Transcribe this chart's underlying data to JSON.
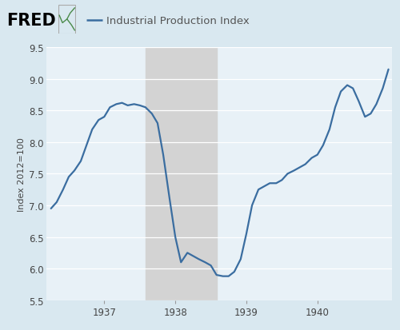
{
  "title": "Industrial Production Index",
  "ylabel": "Index 2012=100",
  "line_color": "#3a6da0",
  "background_color": "#d9e8f0",
  "plot_bg_color": "#e8f1f7",
  "recession_color": "#d3d3d3",
  "recession_start": 1937.583,
  "recession_end": 1938.583,
  "ylim": [
    5.5,
    9.5
  ],
  "xlim_start": 1936.18,
  "xlim_end": 1941.05,
  "xticks": [
    1937,
    1938,
    1939,
    1940
  ],
  "yticks": [
    5.5,
    6.0,
    6.5,
    7.0,
    7.5,
    8.0,
    8.5,
    9.0,
    9.5
  ],
  "data": {
    "x": [
      1936.25,
      1936.33,
      1936.42,
      1936.5,
      1936.58,
      1936.67,
      1936.75,
      1936.83,
      1936.92,
      1937.0,
      1937.08,
      1937.17,
      1937.25,
      1937.33,
      1937.42,
      1937.5,
      1937.58,
      1937.67,
      1937.75,
      1937.83,
      1937.92,
      1938.0,
      1938.08,
      1938.17,
      1938.25,
      1938.33,
      1938.42,
      1938.5,
      1938.58,
      1938.67,
      1938.75,
      1938.83,
      1938.92,
      1939.0,
      1939.08,
      1939.17,
      1939.25,
      1939.33,
      1939.42,
      1939.5,
      1939.58,
      1939.67,
      1939.75,
      1939.83,
      1939.92,
      1940.0,
      1940.08,
      1940.17,
      1940.25,
      1940.33,
      1940.42,
      1940.5,
      1940.58,
      1940.67,
      1940.75,
      1940.83,
      1940.92,
      1941.0
    ],
    "y": [
      6.95,
      7.05,
      7.25,
      7.45,
      7.55,
      7.7,
      7.95,
      8.2,
      8.35,
      8.4,
      8.55,
      8.6,
      8.62,
      8.58,
      8.6,
      8.58,
      8.55,
      8.45,
      8.3,
      7.8,
      7.1,
      6.5,
      6.1,
      6.25,
      6.2,
      6.15,
      6.1,
      6.05,
      5.9,
      5.88,
      5.88,
      5.95,
      6.15,
      6.55,
      7.0,
      7.25,
      7.3,
      7.35,
      7.35,
      7.4,
      7.5,
      7.55,
      7.6,
      7.65,
      7.75,
      7.8,
      7.95,
      8.2,
      8.55,
      8.8,
      8.9,
      8.85,
      8.65,
      8.4,
      8.45,
      8.6,
      8.85,
      9.15
    ]
  }
}
